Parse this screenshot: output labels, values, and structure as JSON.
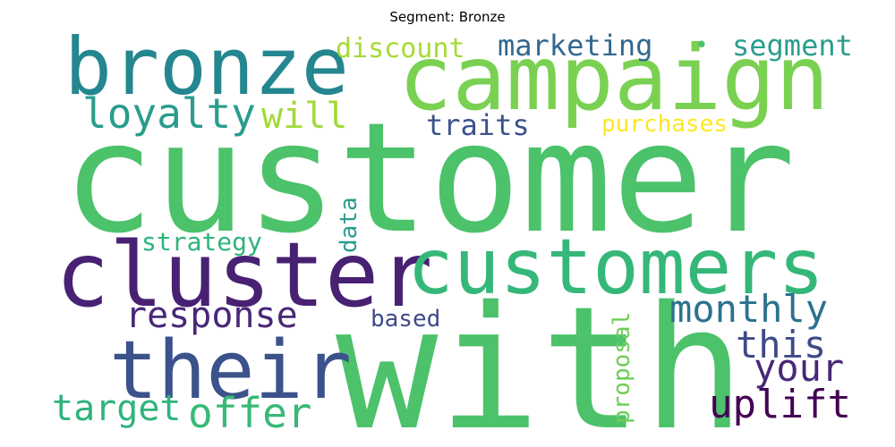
{
  "chart_data": {
    "type": "wordcloud",
    "title": "Segment: Bronze",
    "words": [
      {
        "text": "customer",
        "weight": 1.0,
        "color": "#4cc26a"
      },
      {
        "text": "with",
        "weight": 0.95,
        "color": "#4cc26a"
      },
      {
        "text": "campaign",
        "weight": 0.6,
        "color": "#7ad151"
      },
      {
        "text": "cluster",
        "weight": 0.6,
        "color": "#482173"
      },
      {
        "text": "customers",
        "weight": 0.55,
        "color": "#35b779"
      },
      {
        "text": "bronze",
        "weight": 0.5,
        "color": "#24868e"
      },
      {
        "text": "their",
        "weight": 0.5,
        "color": "#3b528b"
      },
      {
        "text": "loyalty",
        "weight": 0.3,
        "color": "#2a9d8c"
      },
      {
        "text": "response",
        "weight": 0.28,
        "color": "#482878"
      },
      {
        "text": "offer",
        "weight": 0.28,
        "color": "#38b977"
      },
      {
        "text": "target",
        "weight": 0.26,
        "color": "#2fb47c"
      },
      {
        "text": "will",
        "weight": 0.26,
        "color": "#a2da37"
      },
      {
        "text": "monthly",
        "weight": 0.26,
        "color": "#2c728e"
      },
      {
        "text": "this",
        "weight": 0.26,
        "color": "#3e4a89"
      },
      {
        "text": "your",
        "weight": 0.26,
        "color": "#482878"
      },
      {
        "text": "uplift",
        "weight": 0.28,
        "color": "#440154"
      },
      {
        "text": "segment",
        "weight": 0.2,
        "color": "#2a9d8c"
      },
      {
        "text": "marketing",
        "weight": 0.2,
        "color": "#31688e"
      },
      {
        "text": "discount",
        "weight": 0.2,
        "color": "#a5db36"
      },
      {
        "text": "traits",
        "weight": 0.2,
        "color": "#3b528b"
      },
      {
        "text": "purchases",
        "weight": 0.16,
        "color": "#fde725"
      },
      {
        "text": "strategy",
        "weight": 0.18,
        "color": "#2fb47c"
      },
      {
        "text": "data",
        "weight": 0.16,
        "color": "#2a9d8c"
      },
      {
        "text": "based",
        "weight": 0.16,
        "color": "#3e4a89"
      },
      {
        "text": "proposal",
        "weight": 0.16,
        "color": "#6ece58"
      },
      {
        "text": "•",
        "weight": 0.1,
        "color": "#4cc26a"
      }
    ]
  }
}
